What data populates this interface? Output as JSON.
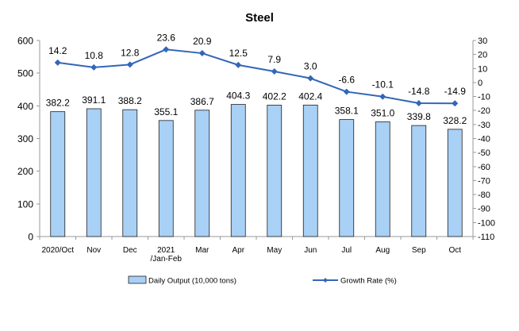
{
  "chart_data": {
    "type": "bar",
    "title": "Steel",
    "categories": [
      [
        "2020/Oct"
      ],
      [
        "Nov"
      ],
      [
        "Dec"
      ],
      [
        "2021",
        "/Jan-Feb"
      ],
      [
        "Mar"
      ],
      [
        "Apr"
      ],
      [
        "May"
      ],
      [
        "Jun"
      ],
      [
        "Jul"
      ],
      [
        "Aug"
      ],
      [
        "Sep"
      ],
      [
        "Oct"
      ]
    ],
    "series": [
      {
        "name": "Daily Output (10,000 tons)",
        "type": "bar",
        "axis": "left",
        "values": [
          382.2,
          391.1,
          388.2,
          355.1,
          386.7,
          404.3,
          402.2,
          402.4,
          358.1,
          351.0,
          339.8,
          328.2
        ],
        "labels": [
          "382.2",
          "391.1",
          "388.2",
          "355.1",
          "386.7",
          "404.3",
          "402.2",
          "402.4",
          "358.1",
          "351.0",
          "339.8",
          "328.2"
        ],
        "fill": "#a9d0f5",
        "stroke": "#1f1f1f"
      },
      {
        "name": "Growth Rate (%)",
        "type": "line",
        "axis": "right",
        "marker": "diamond",
        "values": [
          14.2,
          10.8,
          12.8,
          23.6,
          20.9,
          12.5,
          7.9,
          3.0,
          -6.6,
          -10.1,
          -14.8,
          -14.9
        ],
        "labels": [
          "14.2",
          "10.8",
          "12.8",
          "23.6",
          "20.9",
          "12.5",
          "7.9",
          "3.0",
          "-6.6",
          "-10.1",
          "-14.8",
          "-14.9"
        ],
        "color": "#3366b8"
      }
    ],
    "y_left": {
      "ylim": [
        0,
        600
      ],
      "ticks": [
        0,
        100,
        200,
        300,
        400,
        500,
        600
      ]
    },
    "y_right": {
      "ylim": [
        -110,
        30
      ],
      "ticks": [
        30,
        20,
        10,
        0,
        -10,
        -20,
        -30,
        -40,
        -50,
        -60,
        -70,
        -80,
        -90,
        -100,
        -110
      ]
    },
    "grid": false,
    "legend_position": "bottom"
  }
}
